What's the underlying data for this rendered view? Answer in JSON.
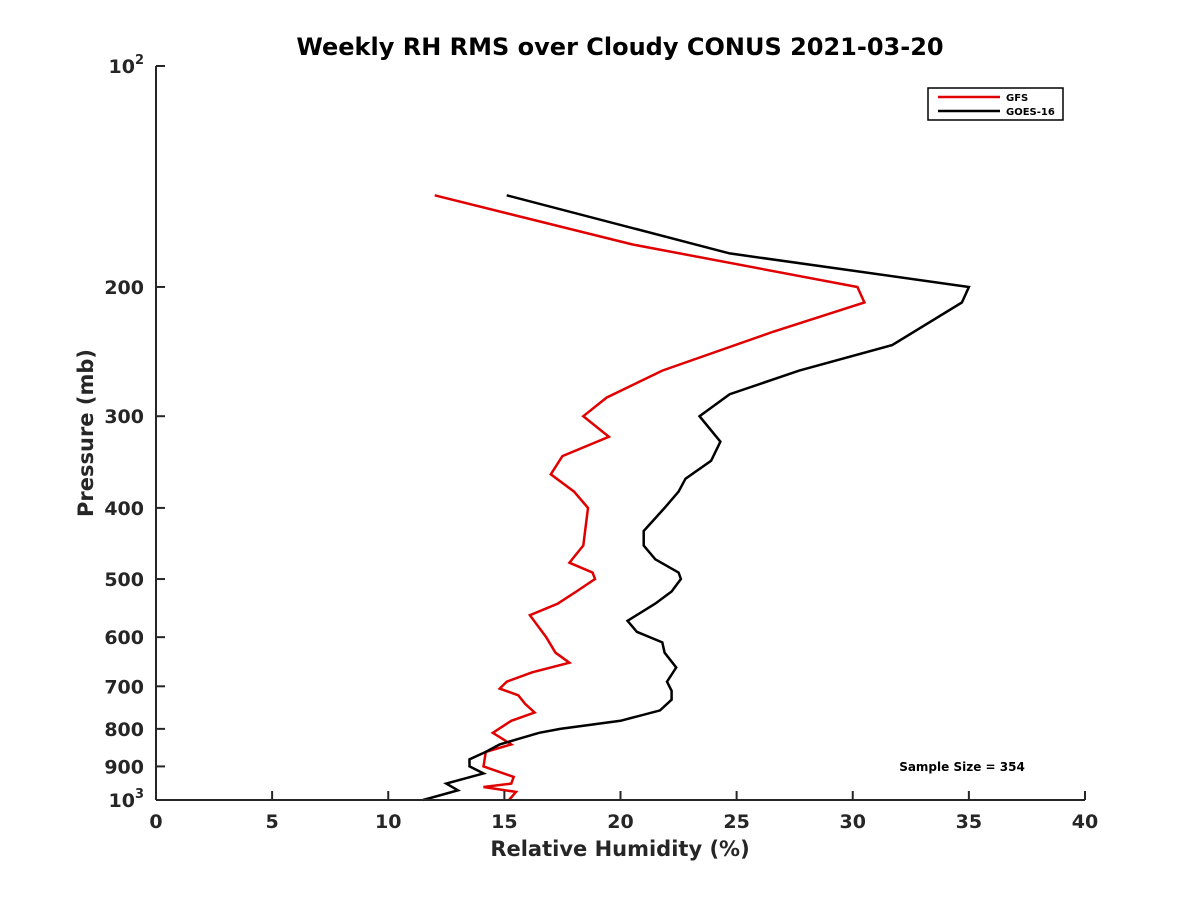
{
  "chart_data": {
    "type": "line",
    "title": "Weekly RH RMS over Cloudy CONUS 2021-03-20",
    "xlabel": "Relative Humidity (%)",
    "ylabel": "Pressure (mb)",
    "xlim": [
      0,
      40
    ],
    "ylim": [
      100,
      1000
    ],
    "y_scale": "log",
    "y_reversed": true,
    "grid": false,
    "legend_position": "top-right",
    "x_ticks": [
      "0",
      "5",
      "10",
      "15",
      "20",
      "25",
      "30",
      "35",
      "40"
    ],
    "y_ticks": [
      {
        "value": 100,
        "base": "10",
        "exp": "2"
      },
      {
        "value": 200,
        "base": "200",
        "exp": ""
      },
      {
        "value": 300,
        "base": "300",
        "exp": ""
      },
      {
        "value": 400,
        "base": "400",
        "exp": ""
      },
      {
        "value": 500,
        "base": "500",
        "exp": ""
      },
      {
        "value": 600,
        "base": "600",
        "exp": ""
      },
      {
        "value": 700,
        "base": "700",
        "exp": ""
      },
      {
        "value": 800,
        "base": "800",
        "exp": ""
      },
      {
        "value": 900,
        "base": "900",
        "exp": ""
      },
      {
        "value": 1000,
        "base": "10",
        "exp": "3"
      }
    ],
    "annotation": "Sample Size = 354",
    "series": [
      {
        "name": "GFS",
        "color": "#e00000",
        "points": [
          [
            12.0,
            150
          ],
          [
            20.5,
            175
          ],
          [
            30.2,
            200
          ],
          [
            30.5,
            210
          ],
          [
            26.6,
            230
          ],
          [
            21.8,
            260
          ],
          [
            19.4,
            283
          ],
          [
            18.4,
            300
          ],
          [
            19.5,
            320
          ],
          [
            17.5,
            340
          ],
          [
            17.0,
            360
          ],
          [
            18.0,
            380
          ],
          [
            18.6,
            400
          ],
          [
            18.4,
            450
          ],
          [
            17.8,
            475
          ],
          [
            18.8,
            490
          ],
          [
            18.9,
            500
          ],
          [
            18.1,
            520
          ],
          [
            17.3,
            540
          ],
          [
            16.1,
            560
          ],
          [
            16.8,
            600
          ],
          [
            17.2,
            630
          ],
          [
            17.8,
            650
          ],
          [
            16.2,
            670
          ],
          [
            15.1,
            690
          ],
          [
            14.8,
            705
          ],
          [
            15.6,
            720
          ],
          [
            15.9,
            740
          ],
          [
            16.3,
            760
          ],
          [
            15.3,
            780
          ],
          [
            14.5,
            810
          ],
          [
            15.3,
            840
          ],
          [
            14.2,
            860
          ],
          [
            14.1,
            900
          ],
          [
            15.4,
            930
          ],
          [
            15.3,
            950
          ],
          [
            14.1,
            960
          ],
          [
            15.5,
            975
          ],
          [
            15.2,
            1000
          ]
        ]
      },
      {
        "name": "GOES-16",
        "color": "#000000",
        "points": [
          [
            15.1,
            150
          ],
          [
            24.7,
            180
          ],
          [
            35.0,
            200
          ],
          [
            34.7,
            210
          ],
          [
            31.7,
            240
          ],
          [
            27.7,
            260
          ],
          [
            24.7,
            280
          ],
          [
            23.4,
            300
          ],
          [
            24.3,
            325
          ],
          [
            23.9,
            345
          ],
          [
            22.8,
            365
          ],
          [
            22.5,
            380
          ],
          [
            21.9,
            400
          ],
          [
            21.0,
            430
          ],
          [
            21.0,
            450
          ],
          [
            21.5,
            470
          ],
          [
            22.5,
            490
          ],
          [
            22.6,
            500
          ],
          [
            22.2,
            520
          ],
          [
            21.5,
            540
          ],
          [
            20.3,
            570
          ],
          [
            20.7,
            590
          ],
          [
            21.8,
            610
          ],
          [
            21.9,
            630
          ],
          [
            22.4,
            660
          ],
          [
            22.0,
            690
          ],
          [
            22.2,
            710
          ],
          [
            22.2,
            730
          ],
          [
            21.7,
            755
          ],
          [
            20.0,
            780
          ],
          [
            17.4,
            800
          ],
          [
            16.5,
            810
          ],
          [
            14.8,
            840
          ],
          [
            14.2,
            860
          ],
          [
            13.5,
            880
          ],
          [
            13.5,
            900
          ],
          [
            14.1,
            920
          ],
          [
            12.5,
            950
          ],
          [
            13.0,
            970
          ],
          [
            11.5,
            1000
          ]
        ]
      }
    ]
  }
}
